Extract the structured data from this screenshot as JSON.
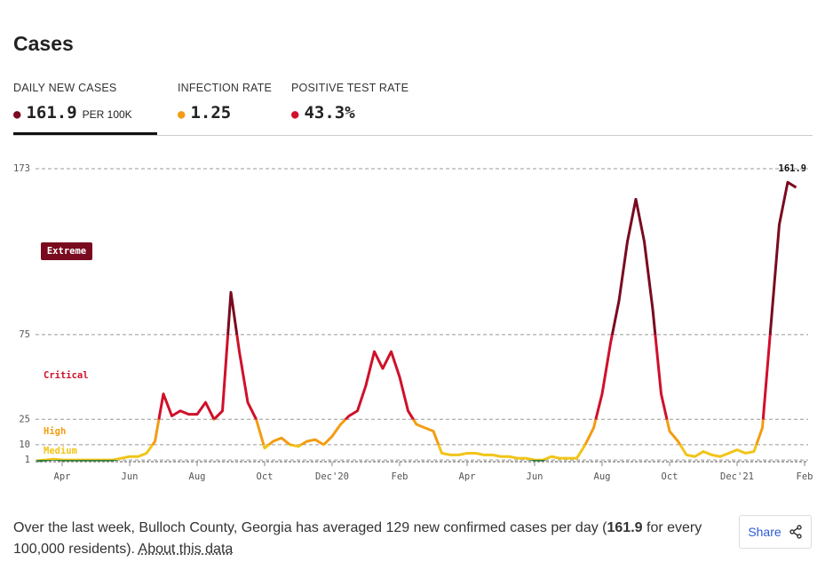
{
  "header": {
    "title": "Cases"
  },
  "tabs": [
    {
      "label": "DAILY NEW CASES",
      "value": "161.9",
      "unit": "PER 100K",
      "color": "#7a0a1f"
    },
    {
      "label": "INFECTION RATE",
      "value": "1.25",
      "color": "#f39c12"
    },
    {
      "label": "POSITIVE TEST RATE",
      "value": "43.3%",
      "color": "#d0102a"
    }
  ],
  "chart_data": {
    "type": "line",
    "categories": [
      null,
      null,
      null,
      "Apr",
      null,
      null,
      null,
      null,
      null,
      null,
      null,
      "Jun",
      null,
      null,
      null,
      null,
      null,
      null,
      null,
      "Aug",
      null,
      null,
      null,
      null,
      null,
      null,
      null,
      "Oct",
      null,
      null,
      null,
      null,
      null,
      null,
      null,
      "Dec'20",
      null,
      null,
      null,
      null,
      null,
      null,
      null,
      "Feb",
      null,
      null,
      null,
      null,
      null,
      null,
      null,
      "Apr",
      null,
      null,
      null,
      null,
      null,
      null,
      null,
      "Jun",
      null,
      null,
      null,
      null,
      null,
      null,
      null,
      "Aug",
      null,
      null,
      null,
      null,
      null,
      null,
      null,
      "Oct",
      null,
      null,
      null,
      null,
      null,
      null,
      null,
      "Dec'21",
      null,
      null,
      null,
      null,
      null,
      null,
      null,
      "Feb"
    ],
    "values": [
      0.5,
      1,
      1.5,
      1,
      1,
      1,
      1,
      1,
      1,
      1,
      2,
      3,
      3,
      5,
      12,
      40,
      27,
      30,
      28,
      28,
      35,
      25,
      30,
      100,
      65,
      35,
      25,
      8,
      12,
      14,
      10,
      9,
      12,
      13,
      10,
      15,
      22,
      27,
      30,
      45,
      65,
      55,
      65,
      50,
      30,
      22,
      20,
      18,
      5,
      4,
      4,
      5,
      5,
      4,
      4,
      3,
      3,
      2,
      2,
      1,
      1,
      3,
      2,
      2,
      2,
      10,
      20,
      40,
      70,
      95,
      130,
      155,
      130,
      90,
      40,
      18,
      12,
      4,
      3,
      6,
      4,
      3,
      5,
      7,
      5,
      6,
      20,
      80,
      140,
      165,
      161.9,
      null
    ],
    "ylim": [
      0,
      173
    ],
    "yticks": [
      1,
      10,
      25,
      75,
      173
    ],
    "grid": true,
    "below_color": "#2e7d32",
    "levels": [
      {
        "name": "Medium",
        "min": 1,
        "color": "#f2c418"
      },
      {
        "name": "High",
        "min": 10,
        "color": "#f39c12"
      },
      {
        "name": "Critical",
        "min": 25,
        "color": "#d0102a"
      },
      {
        "name": "Extreme",
        "min": 75,
        "color": "#7a0a1f"
      }
    ]
  },
  "footer": {
    "text": "Over the last week, Bulloch County, Georgia has averaged 129 new confirmed cases per day (",
    "bold": "161.9",
    "after": " for every 100,000 residents). ",
    "link": "About this data",
    "share": "Share"
  }
}
